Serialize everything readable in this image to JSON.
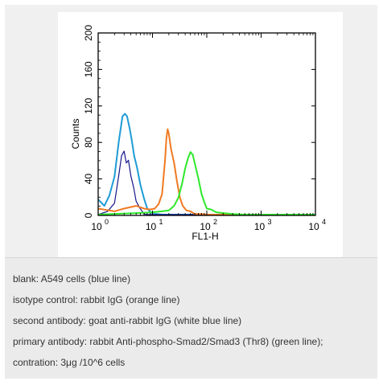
{
  "chart_data": {
    "type": "line",
    "title": "",
    "xlabel": "FL1-H",
    "ylabel": "Counts",
    "xscale": "log",
    "xlim": [
      1,
      10000
    ],
    "ylim": [
      0,
      200
    ],
    "x_ticks": [
      {
        "value": 1,
        "base": "10",
        "exp": "0"
      },
      {
        "value": 10,
        "base": "10",
        "exp": "1"
      },
      {
        "value": 100,
        "base": "10",
        "exp": "2"
      },
      {
        "value": 1000,
        "base": "10",
        "exp": "3"
      },
      {
        "value": 10000,
        "base": "10",
        "exp": "4"
      }
    ],
    "y_ticks": [
      0,
      40,
      80,
      120,
      160,
      200
    ],
    "grid": false,
    "legend": "none",
    "series": [
      {
        "color": "#1f9bd6",
        "x": [
          1,
          1.3,
          1.6,
          2.0,
          2.4,
          2.8,
          3.1,
          3.4,
          3.8,
          4.2,
          4.6,
          5.2,
          6,
          7,
          8,
          9,
          10,
          12,
          15,
          20,
          30,
          50,
          100,
          1000,
          10000
        ],
        "y": [
          18,
          10,
          22,
          42,
          82,
          108,
          112,
          108,
          96,
          80,
          66,
          52,
          34,
          18,
          8,
          4,
          2,
          1,
          0,
          0,
          0,
          0,
          0,
          0,
          0
        ]
      },
      {
        "color": "#16168c",
        "x": [
          1,
          1.5,
          2.0,
          2.4,
          2.7,
          3.0,
          3.3,
          3.6,
          4.0,
          4.5,
          5.0,
          5.8,
          7,
          8,
          10,
          20,
          10000
        ],
        "y": [
          0,
          4,
          14,
          44,
          66,
          70,
          58,
          60,
          44,
          30,
          16,
          8,
          2,
          0,
          0,
          0,
          0
        ]
      },
      {
        "color": "#f07a22",
        "x": [
          1,
          2,
          3,
          5,
          7,
          9,
          11,
          13,
          15,
          17,
          18,
          19,
          20,
          22,
          25,
          28,
          32,
          36,
          42,
          50,
          60,
          80,
          100,
          200,
          1000,
          10000
        ],
        "y": [
          8,
          4,
          8,
          10,
          8,
          6,
          8,
          12,
          24,
          60,
          84,
          94,
          90,
          72,
          58,
          38,
          20,
          10,
          6,
          4,
          2,
          1,
          0,
          0,
          0,
          0
        ]
      },
      {
        "color": "#2ee82a",
        "x": [
          1,
          5,
          10,
          15,
          20,
          25,
          30,
          35,
          40,
          45,
          50,
          55,
          60,
          70,
          80,
          90,
          100,
          120,
          150,
          200,
          300,
          500,
          1000,
          10000
        ],
        "y": [
          0,
          2,
          4,
          4,
          6,
          10,
          20,
          34,
          52,
          62,
          70,
          66,
          58,
          40,
          24,
          14,
          8,
          6,
          4,
          2,
          2,
          0,
          0,
          0
        ]
      }
    ]
  },
  "caption": [
    "blank: A549 cells (blue line)",
    "isotype control: rabbit IgG (orange line)",
    "second antibody: goat anti-rabbit IgG (white blue line)",
    "primary antibody: rabbit Anti-phospho-Smad2/Smad3 (Thr8) (green line);",
    "contration: 3μg /10^6 cells"
  ]
}
